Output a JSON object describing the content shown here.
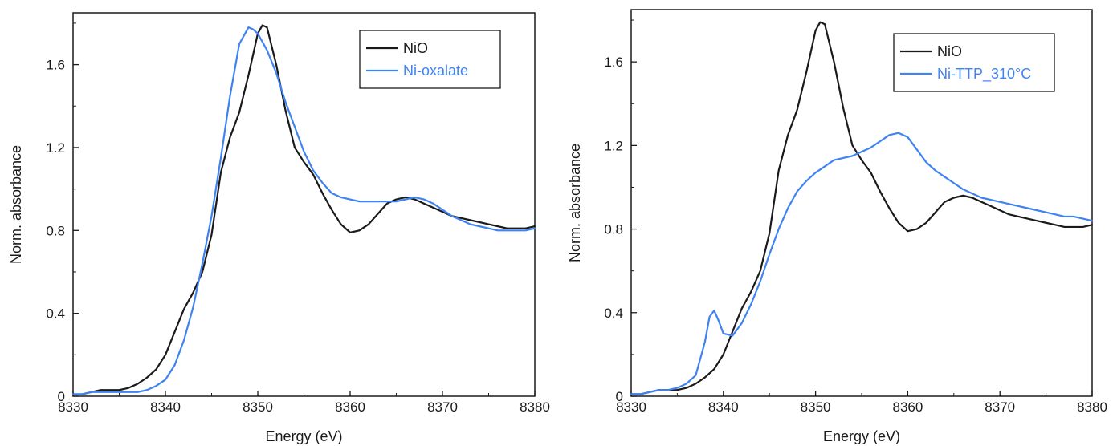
{
  "chart_data": [
    {
      "type": "line",
      "xlabel": "Energy (eV)",
      "ylabel": "Norm. absorbance",
      "xlim": [
        8330,
        8380
      ],
      "ylim": [
        0,
        1.85
      ],
      "xticks": [
        "8330",
        "8340",
        "8350",
        "8360",
        "8370",
        "8380"
      ],
      "yticks": [
        "0",
        "0.4",
        "0.8",
        "1.2",
        "1.6"
      ],
      "legend_position": "top-right",
      "grid": false,
      "series": [
        {
          "name": "NiO",
          "color": "#1a1a1a",
          "x": [
            8330,
            8331,
            8332,
            8333,
            8334,
            8335,
            8336,
            8337,
            8338,
            8339,
            8340,
            8341,
            8342,
            8343,
            8344,
            8345,
            8346,
            8347,
            8348,
            8349,
            8350,
            8350.5,
            8351,
            8352,
            8353,
            8354,
            8355,
            8356,
            8357,
            8358,
            8359,
            8360,
            8361,
            8362,
            8363,
            8364,
            8365,
            8366,
            8367,
            8368,
            8369,
            8370,
            8371,
            8372,
            8373,
            8374,
            8375,
            8376,
            8377,
            8378,
            8379,
            8380
          ],
          "y": [
            0.01,
            0.01,
            0.02,
            0.03,
            0.03,
            0.03,
            0.04,
            0.06,
            0.09,
            0.13,
            0.2,
            0.31,
            0.42,
            0.5,
            0.6,
            0.78,
            1.08,
            1.25,
            1.37,
            1.55,
            1.75,
            1.79,
            1.78,
            1.6,
            1.38,
            1.2,
            1.13,
            1.07,
            0.98,
            0.9,
            0.83,
            0.79,
            0.8,
            0.83,
            0.88,
            0.93,
            0.95,
            0.96,
            0.95,
            0.93,
            0.91,
            0.89,
            0.87,
            0.86,
            0.85,
            0.84,
            0.83,
            0.82,
            0.81,
            0.81,
            0.81,
            0.82
          ]
        },
        {
          "name": "Ni-oxalate",
          "color": "#3f83f2",
          "x": [
            8330,
            8331,
            8332,
            8333,
            8334,
            8335,
            8336,
            8337,
            8338,
            8339,
            8340,
            8341,
            8342,
            8343,
            8344,
            8345,
            8346,
            8347,
            8348,
            8349,
            8349.5,
            8350,
            8351,
            8352,
            8353,
            8354,
            8355,
            8356,
            8357,
            8358,
            8359,
            8360,
            8361,
            8362,
            8363,
            8364,
            8365,
            8366,
            8367,
            8368,
            8369,
            8370,
            8371,
            8372,
            8373,
            8374,
            8375,
            8376,
            8377,
            8378,
            8379,
            8380
          ],
          "y": [
            0.01,
            0.01,
            0.02,
            0.02,
            0.02,
            0.02,
            0.02,
            0.02,
            0.03,
            0.05,
            0.08,
            0.15,
            0.27,
            0.43,
            0.64,
            0.87,
            1.15,
            1.45,
            1.7,
            1.78,
            1.77,
            1.75,
            1.67,
            1.56,
            1.42,
            1.3,
            1.18,
            1.09,
            1.03,
            0.98,
            0.96,
            0.95,
            0.94,
            0.94,
            0.94,
            0.94,
            0.94,
            0.95,
            0.96,
            0.95,
            0.93,
            0.9,
            0.87,
            0.85,
            0.83,
            0.82,
            0.81,
            0.8,
            0.8,
            0.8,
            0.8,
            0.81
          ]
        }
      ]
    },
    {
      "type": "line",
      "xlabel": "Energy (eV)",
      "ylabel": "Norm. absorbance",
      "xlim": [
        8330,
        8380
      ],
      "ylim": [
        0,
        1.85
      ],
      "xticks": [
        "8330",
        "8340",
        "8350",
        "8360",
        "8370",
        "8380"
      ],
      "yticks": [
        "0",
        "0.4",
        "0.8",
        "1.2",
        "1.6"
      ],
      "legend_position": "top-right",
      "grid": false,
      "series": [
        {
          "name": "NiO",
          "color": "#1a1a1a",
          "x": [
            8330,
            8331,
            8332,
            8333,
            8334,
            8335,
            8336,
            8337,
            8338,
            8339,
            8340,
            8341,
            8342,
            8343,
            8344,
            8345,
            8346,
            8347,
            8348,
            8349,
            8350,
            8350.5,
            8351,
            8352,
            8353,
            8354,
            8355,
            8356,
            8357,
            8358,
            8359,
            8360,
            8361,
            8362,
            8363,
            8364,
            8365,
            8366,
            8367,
            8368,
            8369,
            8370,
            8371,
            8372,
            8373,
            8374,
            8375,
            8376,
            8377,
            8378,
            8379,
            8380
          ],
          "y": [
            0.01,
            0.01,
            0.02,
            0.03,
            0.03,
            0.03,
            0.04,
            0.06,
            0.09,
            0.13,
            0.2,
            0.31,
            0.42,
            0.5,
            0.6,
            0.78,
            1.08,
            1.25,
            1.37,
            1.55,
            1.75,
            1.79,
            1.78,
            1.6,
            1.38,
            1.2,
            1.13,
            1.07,
            0.98,
            0.9,
            0.83,
            0.79,
            0.8,
            0.83,
            0.88,
            0.93,
            0.95,
            0.96,
            0.95,
            0.93,
            0.91,
            0.89,
            0.87,
            0.86,
            0.85,
            0.84,
            0.83,
            0.82,
            0.81,
            0.81,
            0.81,
            0.82
          ]
        },
        {
          "name": "Ni-TTP_310°C",
          "color": "#3f83f2",
          "x": [
            8330,
            8331,
            8332,
            8333,
            8334,
            8335,
            8336,
            8337,
            8338,
            8338.5,
            8339,
            8339.5,
            8340,
            8341,
            8342,
            8343,
            8344,
            8345,
            8346,
            8347,
            8348,
            8349,
            8350,
            8351,
            8352,
            8353,
            8354,
            8355,
            8356,
            8357,
            8358,
            8359,
            8360,
            8361,
            8362,
            8363,
            8364,
            8365,
            8366,
            8367,
            8368,
            8369,
            8370,
            8371,
            8372,
            8373,
            8374,
            8375,
            8376,
            8377,
            8378,
            8379,
            8380
          ],
          "y": [
            0.01,
            0.01,
            0.02,
            0.03,
            0.03,
            0.04,
            0.06,
            0.1,
            0.26,
            0.38,
            0.41,
            0.36,
            0.3,
            0.29,
            0.35,
            0.44,
            0.55,
            0.68,
            0.8,
            0.9,
            0.98,
            1.03,
            1.07,
            1.1,
            1.13,
            1.14,
            1.15,
            1.17,
            1.19,
            1.22,
            1.25,
            1.26,
            1.24,
            1.18,
            1.12,
            1.08,
            1.05,
            1.02,
            0.99,
            0.97,
            0.95,
            0.94,
            0.93,
            0.92,
            0.91,
            0.9,
            0.89,
            0.88,
            0.87,
            0.86,
            0.86,
            0.85,
            0.84
          ]
        }
      ]
    }
  ]
}
